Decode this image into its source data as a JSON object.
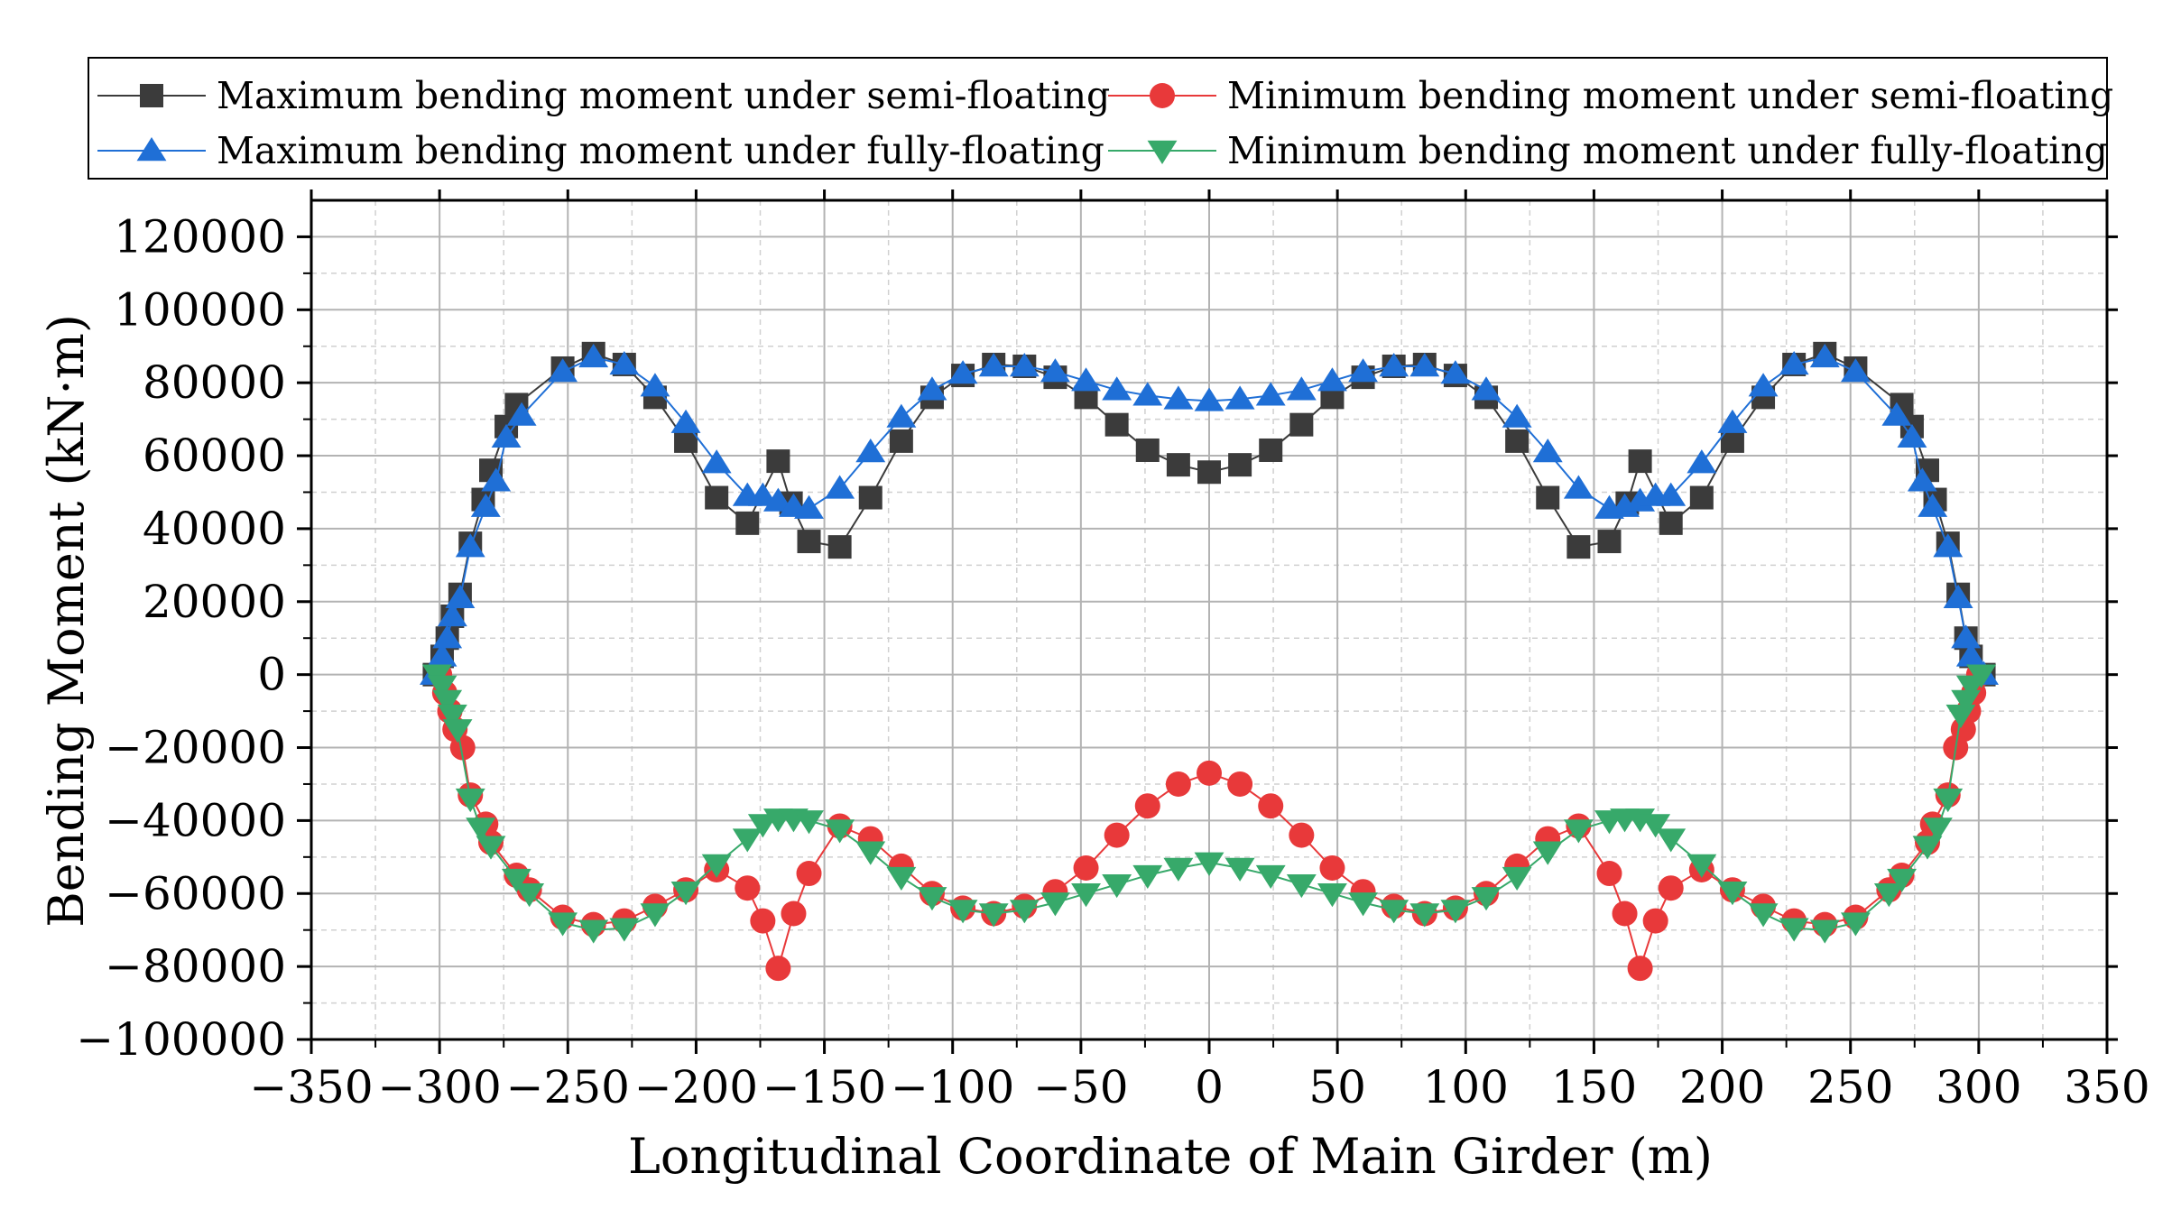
{
  "chart_data": {
    "type": "line",
    "xlabel": "Longitudinal Coordinate of Main Girder (m)",
    "ylabel": "Bending Moment (kN·m)",
    "xlim": [
      -350,
      350
    ],
    "ylim": [
      -100000,
      130000
    ],
    "xticks": [
      -350,
      -300,
      -250,
      -200,
      -150,
      -100,
      -50,
      0,
      50,
      100,
      150,
      200,
      250,
      300,
      350
    ],
    "yticks": [
      -100000,
      -80000,
      -60000,
      -40000,
      -20000,
      0,
      20000,
      40000,
      60000,
      80000,
      100000,
      120000
    ],
    "xtick_labels": [
      "−350",
      "−300",
      "−250",
      "−200",
      "−150",
      "−100",
      "−50",
      "0",
      "50",
      "100",
      "150",
      "200",
      "250",
      "300",
      "350"
    ],
    "ytick_labels": [
      "−100000",
      "−80000",
      "−60000",
      "−40000",
      "−20000",
      "0",
      "20000",
      "40000",
      "60000",
      "80000",
      "100000",
      "120000"
    ],
    "grid": true,
    "legend_position": "top",
    "series": [
      {
        "name": "Maximum bending moment under semi-floating",
        "color": "#3b3b3b",
        "marker": "square",
        "points": [
          [
            -302,
            0
          ],
          [
            -299,
            5000
          ],
          [
            -297,
            10000
          ],
          [
            -295,
            16000
          ],
          [
            -292,
            22000
          ],
          [
            -288,
            36000
          ],
          [
            -283,
            48000
          ],
          [
            -280,
            56000
          ],
          [
            -274,
            68000
          ],
          [
            -270,
            74000
          ],
          [
            -252,
            84000
          ],
          [
            -240,
            88000
          ],
          [
            -228,
            85000
          ],
          [
            -216,
            76000
          ],
          [
            -204,
            64000
          ],
          [
            -192,
            48500
          ],
          [
            -180,
            41500
          ],
          [
            -168,
            58500
          ],
          [
            -163,
            47000
          ],
          [
            -156,
            36500
          ],
          [
            -144,
            35000
          ],
          [
            -132,
            48500
          ],
          [
            -120,
            64000
          ],
          [
            -108,
            76000
          ],
          [
            -96,
            82000
          ],
          [
            -84,
            85000
          ],
          [
            -72,
            84500
          ],
          [
            -60,
            81500
          ],
          [
            -48,
            76000
          ],
          [
            -36,
            68500
          ],
          [
            -24,
            61500
          ],
          [
            -12,
            57500
          ],
          [
            0,
            55500
          ],
          [
            12,
            57500
          ],
          [
            24,
            61500
          ],
          [
            36,
            68500
          ],
          [
            48,
            76000
          ],
          [
            60,
            81500
          ],
          [
            72,
            84500
          ],
          [
            84,
            85000
          ],
          [
            96,
            82000
          ],
          [
            108,
            76000
          ],
          [
            120,
            64000
          ],
          [
            132,
            48500
          ],
          [
            144,
            35000
          ],
          [
            156,
            36500
          ],
          [
            163,
            47000
          ],
          [
            168,
            58500
          ],
          [
            180,
            41500
          ],
          [
            192,
            48500
          ],
          [
            204,
            64000
          ],
          [
            216,
            76000
          ],
          [
            228,
            85000
          ],
          [
            240,
            88000
          ],
          [
            252,
            84000
          ],
          [
            270,
            74000
          ],
          [
            274,
            68000
          ],
          [
            280,
            56000
          ],
          [
            283,
            48000
          ],
          [
            288,
            36000
          ],
          [
            292,
            22000
          ],
          [
            295,
            10000
          ],
          [
            297,
            5000
          ],
          [
            302,
            0
          ]
        ]
      },
      {
        "name": "Minimum bending moment under semi-floating",
        "color": "#e8393a",
        "marker": "circle",
        "points": [
          [
            -300,
            0
          ],
          [
            -298,
            -5000
          ],
          [
            -296,
            -10000
          ],
          [
            -294,
            -15000
          ],
          [
            -291,
            -20000
          ],
          [
            -288,
            -33000
          ],
          [
            -282,
            -41000
          ],
          [
            -280,
            -46000
          ],
          [
            -270,
            -55000
          ],
          [
            -265,
            -59000
          ],
          [
            -252,
            -66500
          ],
          [
            -240,
            -68500
          ],
          [
            -228,
            -67500
          ],
          [
            -216,
            -63500
          ],
          [
            -204,
            -59000
          ],
          [
            -192,
            -53500
          ],
          [
            -180,
            -58500
          ],
          [
            -174,
            -67500
          ],
          [
            -168,
            -80500
          ],
          [
            -162,
            -65500
          ],
          [
            -156,
            -54500
          ],
          [
            -144,
            -41500
          ],
          [
            -132,
            -45000
          ],
          [
            -120,
            -52500
          ],
          [
            -108,
            -60000
          ],
          [
            -96,
            -64000
          ],
          [
            -84,
            -65500
          ],
          [
            -72,
            -63500
          ],
          [
            -60,
            -59500
          ],
          [
            -48,
            -53000
          ],
          [
            -36,
            -44000
          ],
          [
            -24,
            -36000
          ],
          [
            -12,
            -30000
          ],
          [
            0,
            -27000
          ],
          [
            12,
            -30000
          ],
          [
            24,
            -36000
          ],
          [
            36,
            -44000
          ],
          [
            48,
            -53000
          ],
          [
            60,
            -59500
          ],
          [
            72,
            -63500
          ],
          [
            84,
            -65500
          ],
          [
            96,
            -64000
          ],
          [
            108,
            -60000
          ],
          [
            120,
            -52500
          ],
          [
            132,
            -45000
          ],
          [
            144,
            -41500
          ],
          [
            156,
            -54500
          ],
          [
            162,
            -65500
          ],
          [
            168,
            -80500
          ],
          [
            174,
            -67500
          ],
          [
            180,
            -58500
          ],
          [
            192,
            -53500
          ],
          [
            204,
            -59000
          ],
          [
            216,
            -63500
          ],
          [
            228,
            -67500
          ],
          [
            240,
            -68500
          ],
          [
            252,
            -66500
          ],
          [
            265,
            -59000
          ],
          [
            270,
            -55000
          ],
          [
            280,
            -46000
          ],
          [
            282,
            -41000
          ],
          [
            288,
            -33000
          ],
          [
            291,
            -20000
          ],
          [
            294,
            -15000
          ],
          [
            296,
            -10000
          ],
          [
            298,
            -5000
          ],
          [
            300,
            0
          ]
        ]
      },
      {
        "name": "Maximum bending moment under fully-floating",
        "color": "#1f6fd6",
        "marker": "triangle-up",
        "points": [
          [
            -302,
            0
          ],
          [
            -299,
            5000
          ],
          [
            -297,
            10000
          ],
          [
            -295,
            16000
          ],
          [
            -292,
            21000
          ],
          [
            -288,
            35000
          ],
          [
            -282,
            46000
          ],
          [
            -278,
            53000
          ],
          [
            -274,
            65000
          ],
          [
            -268,
            71000
          ],
          [
            -252,
            83000
          ],
          [
            -240,
            87000
          ],
          [
            -228,
            85000
          ],
          [
            -216,
            79000
          ],
          [
            -204,
            69000
          ],
          [
            -192,
            58000
          ],
          [
            -180,
            49000
          ],
          [
            -174,
            49000
          ],
          [
            -168,
            47500
          ],
          [
            -162,
            46000
          ],
          [
            -156,
            45500
          ],
          [
            -144,
            51000
          ],
          [
            -132,
            61000
          ],
          [
            -120,
            70500
          ],
          [
            -108,
            78000
          ],
          [
            -96,
            82500
          ],
          [
            -84,
            84500
          ],
          [
            -72,
            84500
          ],
          [
            -60,
            83000
          ],
          [
            -48,
            80500
          ],
          [
            -36,
            78000
          ],
          [
            -24,
            76500
          ],
          [
            -12,
            75500
          ],
          [
            0,
            75000
          ],
          [
            12,
            75500
          ],
          [
            24,
            76500
          ],
          [
            36,
            78000
          ],
          [
            48,
            80500
          ],
          [
            60,
            83000
          ],
          [
            72,
            84500
          ],
          [
            84,
            84500
          ],
          [
            96,
            82500
          ],
          [
            108,
            78000
          ],
          [
            120,
            70500
          ],
          [
            132,
            61000
          ],
          [
            144,
            51000
          ],
          [
            156,
            45500
          ],
          [
            162,
            46000
          ],
          [
            168,
            47500
          ],
          [
            174,
            49000
          ],
          [
            180,
            49000
          ],
          [
            192,
            58000
          ],
          [
            204,
            69000
          ],
          [
            216,
            79000
          ],
          [
            228,
            85000
          ],
          [
            240,
            87000
          ],
          [
            252,
            83000
          ],
          [
            268,
            71000
          ],
          [
            274,
            65000
          ],
          [
            278,
            53000
          ],
          [
            282,
            46000
          ],
          [
            288,
            35000
          ],
          [
            292,
            21000
          ],
          [
            295,
            10000
          ],
          [
            297,
            5000
          ],
          [
            302,
            0
          ]
        ]
      },
      {
        "name": "Minimum bending moment under fully-floating",
        "color": "#37a96a",
        "marker": "triangle-down",
        "points": [
          [
            -301,
            0
          ],
          [
            -299,
            -3000
          ],
          [
            -297,
            -7000
          ],
          [
            -295,
            -11000
          ],
          [
            -293,
            -15000
          ],
          [
            -288,
            -34000
          ],
          [
            -284,
            -42000
          ],
          [
            -280,
            -47000
          ],
          [
            -270,
            -56000
          ],
          [
            -265,
            -60000
          ],
          [
            -252,
            -68000
          ],
          [
            -240,
            -70000
          ],
          [
            -228,
            -69500
          ],
          [
            -216,
            -65500
          ],
          [
            -204,
            -59500
          ],
          [
            -192,
            -52000
          ],
          [
            -180,
            -45000
          ],
          [
            -174,
            -41000
          ],
          [
            -168,
            -39500
          ],
          [
            -162,
            -39500
          ],
          [
            -156,
            -40000
          ],
          [
            -144,
            -42500
          ],
          [
            -132,
            -48500
          ],
          [
            -120,
            -55500
          ],
          [
            -108,
            -61000
          ],
          [
            -96,
            -64500
          ],
          [
            -84,
            -65500
          ],
          [
            -72,
            -64500
          ],
          [
            -60,
            -62500
          ],
          [
            -48,
            -60000
          ],
          [
            -36,
            -57500
          ],
          [
            -24,
            -55000
          ],
          [
            -12,
            -53000
          ],
          [
            0,
            -51500
          ],
          [
            12,
            -53000
          ],
          [
            24,
            -55000
          ],
          [
            36,
            -57500
          ],
          [
            48,
            -60000
          ],
          [
            60,
            -62500
          ],
          [
            72,
            -64500
          ],
          [
            84,
            -65500
          ],
          [
            96,
            -64500
          ],
          [
            108,
            -61000
          ],
          [
            120,
            -55500
          ],
          [
            132,
            -48500
          ],
          [
            144,
            -42500
          ],
          [
            156,
            -40000
          ],
          [
            162,
            -39500
          ],
          [
            168,
            -39500
          ],
          [
            174,
            -41000
          ],
          [
            180,
            -45000
          ],
          [
            192,
            -52000
          ],
          [
            204,
            -59500
          ],
          [
            216,
            -65500
          ],
          [
            228,
            -69500
          ],
          [
            240,
            -70000
          ],
          [
            252,
            -68000
          ],
          [
            265,
            -60000
          ],
          [
            270,
            -56000
          ],
          [
            280,
            -47000
          ],
          [
            284,
            -42000
          ],
          [
            288,
            -34000
          ],
          [
            293,
            -11000
          ],
          [
            295,
            -7000
          ],
          [
            297,
            -3000
          ],
          [
            301,
            0
          ]
        ]
      }
    ]
  }
}
